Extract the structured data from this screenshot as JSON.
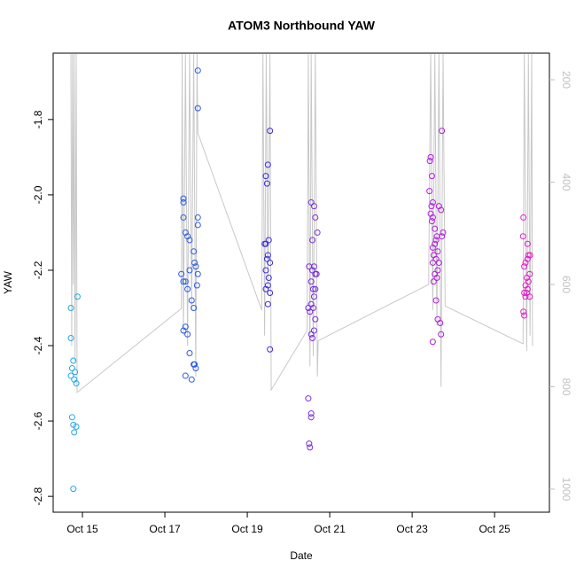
{
  "chart_data": {
    "type": "scatter",
    "title": "ATOM3 Northbound YAW",
    "xlabel": "Date",
    "ylabel": "YAW",
    "xlim": [
      14.29,
      26.33
    ],
    "xticks": [
      {
        "value": 15,
        "label": "Oct 15"
      },
      {
        "value": 17,
        "label": "Oct 17"
      },
      {
        "value": 19,
        "label": "Oct 19"
      },
      {
        "value": 21,
        "label": "Oct 21"
      },
      {
        "value": 23,
        "label": "Oct 23"
      },
      {
        "value": 25,
        "label": "Oct 25"
      }
    ],
    "ylim": [
      -2.842,
      -1.624
    ],
    "yticks": [
      -1.8,
      {
        "value": -2,
        "label": "-2.0"
      },
      -2.2,
      -2.4,
      -2.6,
      -2.8
    ],
    "y2lim": [
      1045,
      148
    ],
    "y2ticks": [
      200,
      400,
      600,
      800,
      1000
    ],
    "y2color": "#c0c0c0",
    "series": [
      {
        "color": "#1fa8e6",
        "x": [
          14.72,
          14.72,
          14.78,
          14.75,
          14.82,
          14.72,
          14.8,
          14.85,
          14.88,
          14.75,
          14.78,
          14.85,
          14.8,
          14.78
        ],
        "values": [
          -2.3,
          -2.38,
          -2.44,
          -2.46,
          -2.47,
          -2.48,
          -2.49,
          -2.5,
          -2.27,
          -2.59,
          -2.61,
          -2.615,
          -2.63,
          -2.78
        ]
      },
      {
        "color": "#2a5ae6",
        "x": [
          17.8,
          17.8,
          17.45,
          17.45,
          17.45,
          17.5,
          17.55,
          17.6,
          17.8,
          17.8,
          17.7,
          17.72,
          17.75,
          17.6,
          17.4,
          17.45,
          17.5,
          17.55,
          17.8,
          17.78,
          17.65,
          17.7,
          17.5,
          17.45,
          17.55,
          17.6,
          17.7,
          17.75,
          17.72,
          17.5,
          17.65
        ],
        "values": [
          -1.67,
          -1.77,
          -2.01,
          -2.02,
          -2.06,
          -2.1,
          -2.11,
          -2.12,
          -2.06,
          -2.08,
          -2.15,
          -2.18,
          -2.19,
          -2.2,
          -2.21,
          -2.23,
          -2.23,
          -2.25,
          -2.21,
          -2.24,
          -2.28,
          -2.3,
          -2.35,
          -2.36,
          -2.37,
          -2.42,
          -2.45,
          -2.46,
          -2.45,
          -2.48,
          -2.49
        ]
      },
      {
        "color": "#3a2ee0",
        "x": [
          19.55,
          19.5,
          19.45,
          19.48,
          19.52,
          19.42,
          19.45,
          19.5,
          19.48,
          19.55,
          19.45,
          19.52,
          19.5,
          19.45,
          19.55,
          19.5,
          19.55
        ],
        "values": [
          -1.83,
          -1.92,
          -1.95,
          -1.97,
          -2.12,
          -2.13,
          -2.13,
          -2.16,
          -2.17,
          -2.18,
          -2.2,
          -2.22,
          -2.24,
          -2.25,
          -2.26,
          -2.29,
          -2.41
        ]
      },
      {
        "color": "#7a2ee0",
        "x": [
          20.55,
          20.62,
          20.65,
          20.7,
          20.58,
          20.5,
          20.58,
          20.62,
          20.65,
          20.68,
          20.55,
          20.6,
          20.65,
          20.62,
          20.55,
          20.48,
          20.52,
          20.6,
          20.65,
          20.62,
          20.55,
          20.58,
          20.48,
          20.55,
          20.55,
          20.5,
          20.52
        ],
        "values": [
          -2.02,
          -2.03,
          -2.06,
          -2.1,
          -2.12,
          -2.19,
          -2.2,
          -2.19,
          -2.21,
          -2.21,
          -2.23,
          -2.25,
          -2.25,
          -2.27,
          -2.29,
          -2.3,
          -2.31,
          -2.3,
          -2.33,
          -2.36,
          -2.37,
          -2.38,
          -2.54,
          -2.58,
          -2.59,
          -2.66,
          -2.67
        ]
      },
      {
        "color": "#b01ee0",
        "x": [
          23.45,
          23.43,
          23.48,
          23.42,
          23.5,
          23.47,
          23.65,
          23.7,
          23.72,
          23.45,
          23.5,
          23.48,
          23.55,
          23.6,
          23.75,
          23.72,
          23.58,
          23.55,
          23.5,
          23.62,
          23.52,
          23.58,
          23.5,
          23.65,
          23.62,
          23.55,
          23.6,
          23.52,
          23.58,
          23.62,
          23.68,
          23.7,
          23.5
        ],
        "values": [
          -1.9,
          -1.91,
          -1.95,
          -1.99,
          -2.02,
          -2.03,
          -2.03,
          -2.04,
          -1.83,
          -2.05,
          -2.06,
          -2.07,
          -2.09,
          -2.11,
          -2.1,
          -2.11,
          -2.12,
          -2.13,
          -2.14,
          -2.15,
          -2.16,
          -2.17,
          -2.18,
          -2.18,
          -2.2,
          -2.21,
          -2.22,
          -2.23,
          -2.28,
          -2.33,
          -2.34,
          -2.37,
          -2.39
        ]
      },
      {
        "color": "#e01ec8",
        "x": [
          25.7,
          25.69,
          25.8,
          25.82,
          25.86,
          25.75,
          25.8,
          25.72,
          25.85,
          25.78,
          25.82,
          25.75,
          25.8,
          25.72,
          25.78,
          25.85,
          25.75,
          25.7,
          25.72
        ],
        "values": [
          -2.06,
          -2.11,
          -2.13,
          -2.16,
          -2.16,
          -2.18,
          -2.17,
          -2.19,
          -2.21,
          -2.22,
          -2.23,
          -2.24,
          -2.25,
          -2.26,
          -2.26,
          -2.27,
          -2.27,
          -2.31,
          -2.32
        ]
      },
      {
        "type": "line",
        "axis": "y2",
        "color": "#c8c8c8",
        "x": [
          14.72,
          14.74,
          14.76,
          14.78,
          14.8,
          14.82,
          14.85,
          14.87,
          17.4,
          17.42,
          17.45,
          17.5,
          17.55,
          17.6,
          17.65,
          17.7,
          17.75,
          17.78,
          17.8,
          19.35,
          19.38,
          19.42,
          19.46,
          19.5,
          19.55,
          19.58,
          20.45,
          20.48,
          20.52,
          20.55,
          20.6,
          20.65,
          20.7,
          20.72,
          23.4,
          23.45,
          23.5,
          23.55,
          23.6,
          23.65,
          23.7,
          23.75,
          23.8,
          25.69,
          25.72,
          25.78,
          25.82,
          25.86,
          25.9,
          25.92
        ],
        "values": [
          150,
          720,
          150,
          600,
          150,
          750,
          150,
          811,
          647,
          150,
          700,
          150,
          720,
          150,
          650,
          150,
          780,
          150,
          304,
          650,
          150,
          700,
          150,
          620,
          150,
          806,
          690,
          150,
          760,
          150,
          740,
          150,
          780,
          710,
          600,
          150,
          650,
          150,
          680,
          150,
          800,
          150,
          642,
          716,
          150,
          730,
          150,
          700,
          150,
          720
        ]
      }
    ]
  }
}
